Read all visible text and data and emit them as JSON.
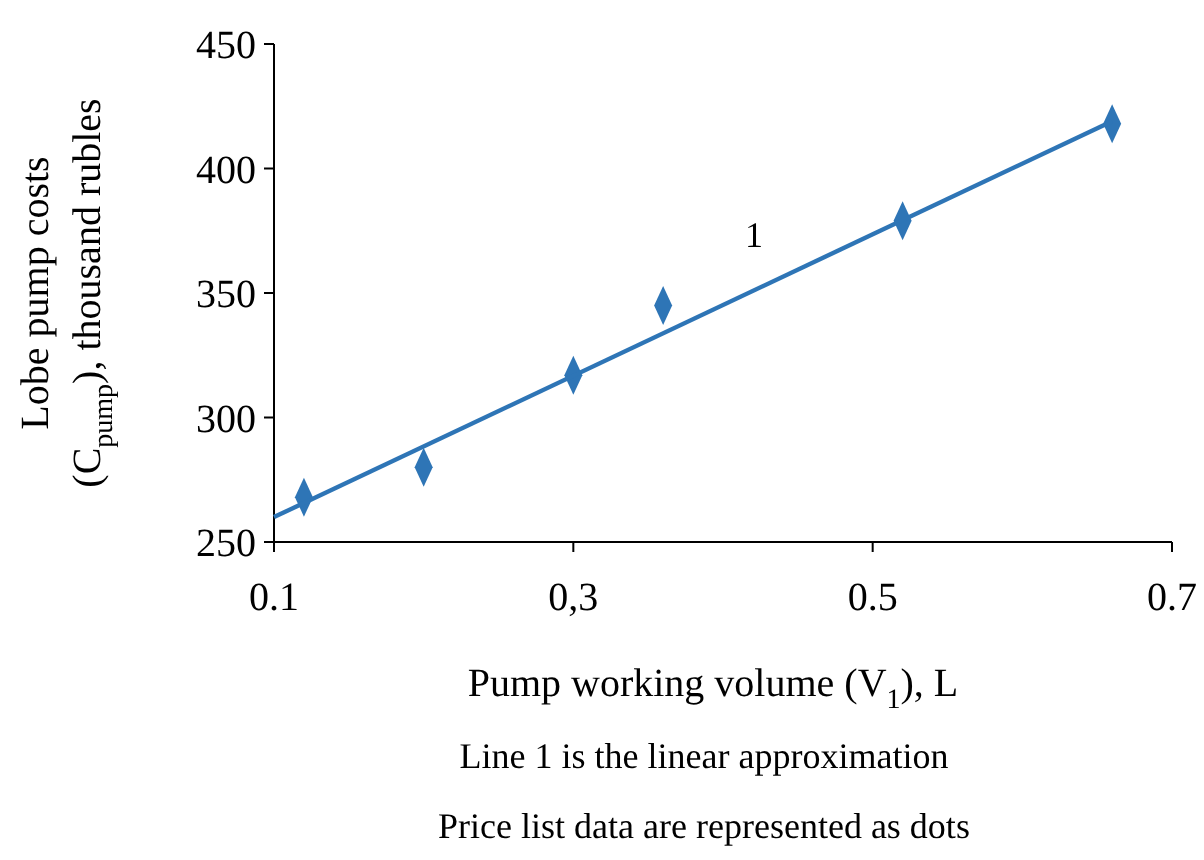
{
  "chart_data": {
    "type": "scatter",
    "xlabel": "Pump working volume (V$_{1}$), L",
    "ylabel": "Lobe pump costs (C$_{pump}$), thousand rubles",
    "xlim": [
      0.1,
      0.7
    ],
    "xticks": [
      0.1,
      {
        "value": 0.3,
        "label": "0,3"
      },
      0.5,
      0.7
    ],
    "ylim": [
      250,
      450
    ],
    "yticks": [
      250,
      300,
      350,
      400,
      450
    ],
    "grid": false,
    "series": [
      {
        "color": "#2e75b6",
        "marker": "diamond",
        "x": [
          0.12,
          0.2,
          0.3,
          0.36,
          0.52,
          0.66
        ],
        "values": [
          268,
          280,
          317,
          345,
          379,
          418
        ]
      },
      {
        "type": "line",
        "color": "#2e75b6",
        "marker": "none",
        "line_style": "solid",
        "x": [
          0.1,
          0.66
        ],
        "values": [
          260,
          419
        ]
      }
    ],
    "annotations": [
      "1",
      "Line 1 is the linear approximation",
      "Price list data are represented as dots"
    ]
  }
}
